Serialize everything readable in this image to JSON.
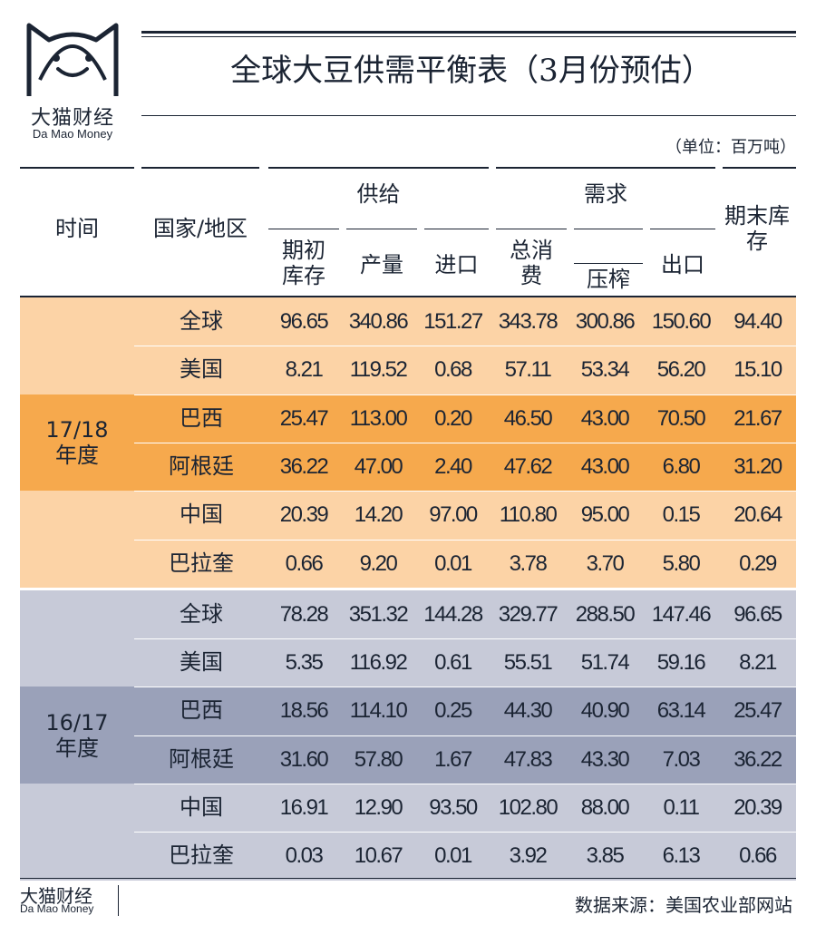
{
  "logo": {
    "cn": "大猫财经",
    "en": "Da Mao Money",
    "icon": "cat-face-icon"
  },
  "title": "全球大豆供需平衡表（3月份预估）",
  "unit": "（单位：百万吨）",
  "headers": {
    "time": "时间",
    "country": "国家/地区",
    "supply_group": "供给",
    "demand_group": "需求",
    "begin_stock": "期初库存",
    "production": "产量",
    "imports": "进口",
    "total_consumption": "总消费",
    "crush": "压榨",
    "exports": "出口",
    "end_stock": "期末库存"
  },
  "colors": {
    "light_orange": "#fcd3a6",
    "dark_orange": "#f6a94d",
    "light_blue": "#c7cad8",
    "dark_blue": "#9aa1b9",
    "ink": "#1b2433"
  },
  "periods": [
    {
      "label_line1": "17/18",
      "label_line2": "年度",
      "rows": [
        {
          "name": "全球",
          "values": [
            "96.65",
            "340.86",
            "151.27",
            "343.78",
            "300.86",
            "150.60",
            "94.40"
          ]
        },
        {
          "name": "美国",
          "values": [
            "8.21",
            "119.52",
            "0.68",
            "57.11",
            "53.34",
            "56.20",
            "15.10"
          ]
        },
        {
          "name": "巴西",
          "values": [
            "25.47",
            "113.00",
            "0.20",
            "46.50",
            "43.00",
            "70.50",
            "21.67"
          ]
        },
        {
          "name": "阿根廷",
          "values": [
            "36.22",
            "47.00",
            "2.40",
            "47.62",
            "43.00",
            "6.80",
            "31.20"
          ]
        },
        {
          "name": "中国",
          "values": [
            "20.39",
            "14.20",
            "97.00",
            "110.80",
            "95.00",
            "0.15",
            "20.64"
          ]
        },
        {
          "name": "巴拉奎",
          "values": [
            "0.66",
            "9.20",
            "0.01",
            "3.78",
            "3.70",
            "5.80",
            "0.29"
          ]
        }
      ]
    },
    {
      "label_line1": "16/17",
      "label_line2": "年度",
      "rows": [
        {
          "name": "全球",
          "values": [
            "78.28",
            "351.32",
            "144.28",
            "329.77",
            "288.50",
            "147.46",
            "96.65"
          ]
        },
        {
          "name": "美国",
          "values": [
            "5.35",
            "116.92",
            "0.61",
            "55.51",
            "51.74",
            "59.16",
            "8.21"
          ]
        },
        {
          "name": "巴西",
          "values": [
            "18.56",
            "114.10",
            "0.25",
            "44.30",
            "40.90",
            "63.14",
            "25.47"
          ]
        },
        {
          "name": "阿根廷",
          "values": [
            "31.60",
            "57.80",
            "1.67",
            "47.83",
            "43.30",
            "7.03",
            "36.22"
          ]
        },
        {
          "name": "中国",
          "values": [
            "16.91",
            "12.90",
            "93.50",
            "102.80",
            "88.00",
            "0.11",
            "20.39"
          ]
        },
        {
          "name": "巴拉奎",
          "values": [
            "0.03",
            "10.67",
            "0.01",
            "3.92",
            "3.85",
            "6.13",
            "0.66"
          ]
        }
      ]
    }
  ],
  "footer": {
    "logo_cn": "大猫财经",
    "logo_en": "Da Mao Money",
    "source": "数据来源：美国农业部网站"
  }
}
